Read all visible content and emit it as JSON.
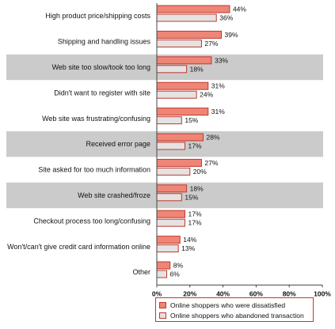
{
  "chart_data": {
    "type": "bar",
    "orientation": "horizontal",
    "categories": [
      "High product price/shipping costs",
      "Shipping and handling issues",
      "Web site too slow/took too long",
      "Didn't want to register with site",
      "Web site was frustrating/confusing",
      "Received error page",
      "Site asked for too much information",
      "Web site crashed/froze",
      "Checkout process too long/confusing",
      "Won't/can't give credit card information online",
      "Other"
    ],
    "series": [
      {
        "name": "Online shoppers who were dissatisfied",
        "values": [
          44,
          39,
          33,
          31,
          31,
          28,
          27,
          18,
          17,
          14,
          8
        ],
        "value_labels": [
          "44%",
          "39%",
          "33%",
          "31%",
          "31%",
          "28%",
          "27%",
          "18%",
          "17%",
          "14%",
          "8%"
        ]
      },
      {
        "name": "Online shoppers who abandoned transaction",
        "values": [
          36,
          27,
          18,
          24,
          15,
          17,
          20,
          15,
          17,
          13,
          6
        ],
        "value_labels": [
          "36%",
          "27%",
          "18%",
          "24%",
          "15%",
          "17%",
          "20%",
          "15%",
          "17%",
          "13%",
          "6%"
        ]
      }
    ],
    "xlabel": "Percentage of Segment",
    "ylabel": "",
    "xlim": [
      0,
      100
    ],
    "xticks": [
      0,
      20,
      40,
      60,
      80,
      100
    ],
    "xtick_labels": [
      "0%",
      "20%",
      "40%",
      "60%",
      "80%",
      "100%"
    ],
    "highlighted_rows": [
      2,
      5,
      7
    ],
    "grid": false,
    "legend_position": "bottom-right",
    "colors": {
      "series_1_fill": "#ee8577",
      "series_2_fill": "#e4e2e2",
      "bar_border": "#c0392b",
      "band": "#cbcbcb",
      "axis": "#444444"
    }
  }
}
